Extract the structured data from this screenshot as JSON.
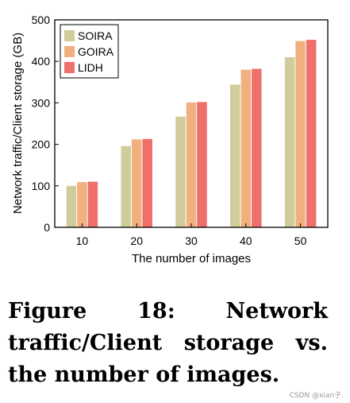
{
  "chart_data": {
    "type": "bar",
    "categories": [
      "10",
      "20",
      "30",
      "40",
      "50"
    ],
    "series": [
      {
        "name": "SOIRA",
        "values": [
          100,
          196,
          267,
          344,
          410
        ],
        "color": "#d1cc9c"
      },
      {
        "name": "GOIRA",
        "values": [
          109,
          212,
          301,
          380,
          449
        ],
        "color": "#f2b07e"
      },
      {
        "name": "LIDH",
        "values": [
          110,
          213,
          302,
          382,
          452
        ],
        "color": "#ef6f6c"
      }
    ],
    "xlabel": "The number of images",
    "ylabel": "Network traffic/Client storage (GB)",
    "ylim": [
      0,
      500
    ],
    "yticks": [
      0,
      100,
      200,
      300,
      400,
      500
    ],
    "grid": false,
    "legend_position": "top-left"
  },
  "caption": "Figure 18: Network traffic/Client storage vs. the number of images.",
  "watermark": "CSDN @xian子."
}
